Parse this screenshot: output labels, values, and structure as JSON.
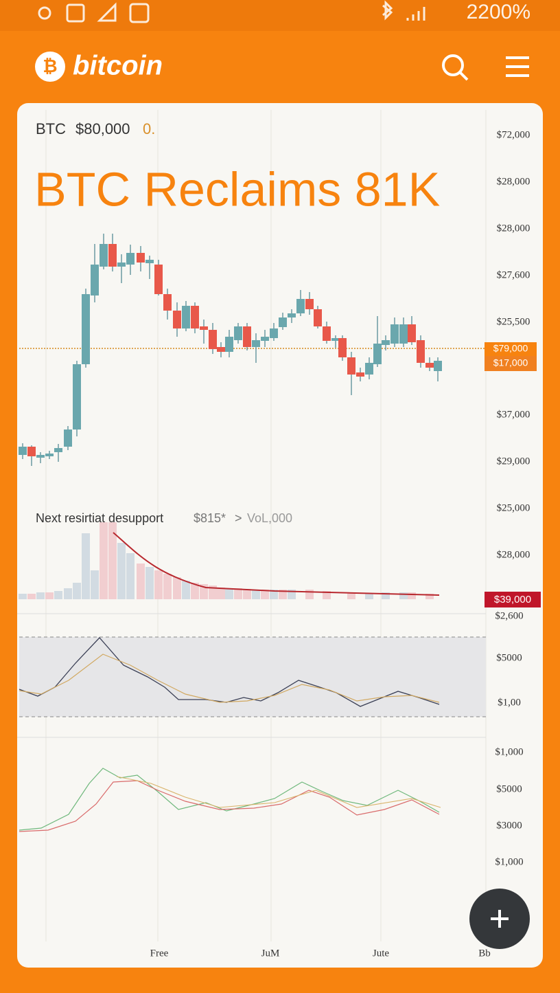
{
  "status_bar": {
    "battery": "2200%"
  },
  "header": {
    "logo": "bitcoin"
  },
  "card": {
    "ticker": "BTC",
    "price": "$80,000",
    "change": "0.",
    "headline": "BTC Reclaims 81K",
    "support_line": {
      "label": "Next resirtiat desupport",
      "value": "$815*",
      "arrow": ">",
      "volume": "VoL,000"
    },
    "price_axis": [
      "$72,000",
      "$28,000",
      "$28,000",
      "$27,600",
      "$25,500",
      "$37,000",
      "$29,000",
      "$25,000",
      "$28,000",
      "$2,600",
      "$5000",
      "$1,00",
      "$1,000",
      "$5000",
      "$3000",
      "$1,000"
    ],
    "price_tags": [
      "$79,000",
      "$17,000",
      "$39,000"
    ],
    "time_axis": [
      "Free",
      "JuM",
      "Jute",
      "Bb"
    ]
  }
}
